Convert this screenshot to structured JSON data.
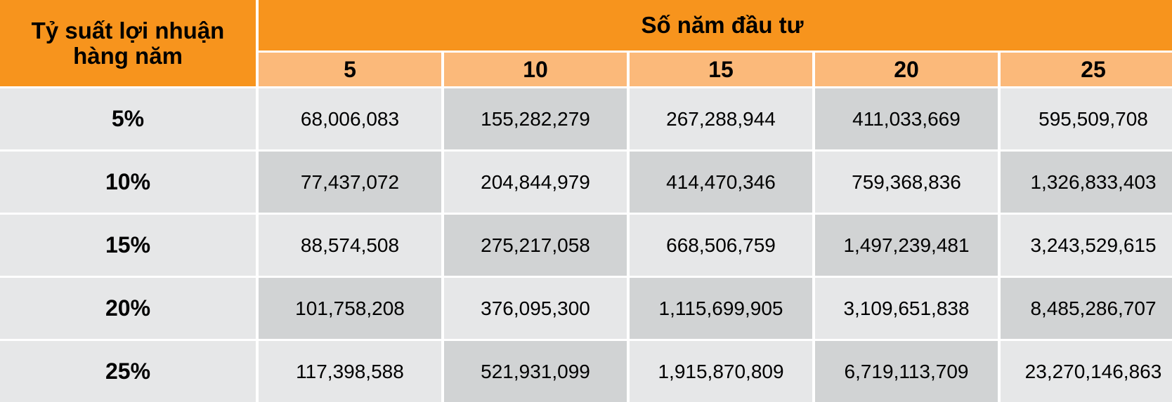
{
  "table": {
    "corner_header": "Tỷ suất lợi nhuận hàng năm",
    "span_header": "Số năm đầu tư",
    "years": [
      "5",
      "10",
      "15",
      "20",
      "25"
    ],
    "rows": [
      {
        "rate": "5%",
        "values": [
          "68,006,083",
          "155,282,279",
          "267,288,944",
          "411,033,669",
          "595,509,708"
        ]
      },
      {
        "rate": "10%",
        "values": [
          "77,437,072",
          "204,844,979",
          "414,470,346",
          "759,368,836",
          "1,326,833,403"
        ]
      },
      {
        "rate": "15%",
        "values": [
          "88,574,508",
          "275,217,058",
          "668,506,759",
          "1,497,239,481",
          "3,243,529,615"
        ]
      },
      {
        "rate": "20%",
        "values": [
          "101,758,208",
          "376,095,300",
          "1,115,699,905",
          "3,109,651,838",
          "8,485,286,707"
        ]
      },
      {
        "rate": "25%",
        "values": [
          "117,398,588",
          "521,931,099",
          "1,915,870,809",
          "6,719,113,709",
          "23,270,146,863"
        ]
      }
    ]
  },
  "colors": {
    "header_orange": "#f7941d",
    "subheader_orange": "#fbb97a",
    "cell_light": "#e6e7e8",
    "cell_dark": "#d1d3d4"
  }
}
